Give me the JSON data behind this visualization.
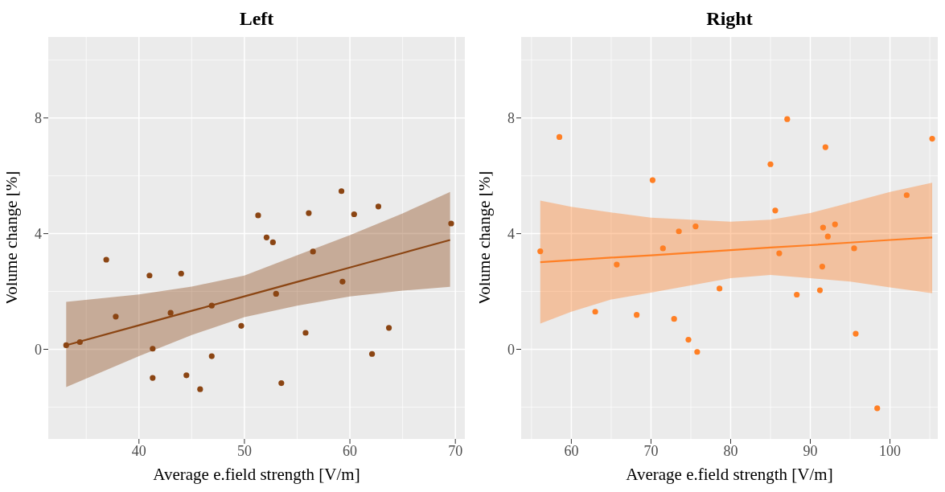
{
  "chart_data": [
    {
      "type": "scatter",
      "title": "Left",
      "xlabel": "Average e.field strength [V/m]",
      "ylabel": "Volume change [%]",
      "xlim": [
        31.4,
        70.9
      ],
      "xticks": [
        40,
        50,
        60,
        70
      ],
      "ylim": [
        -3.1,
        10.8
      ],
      "yticks": [
        0,
        4,
        8
      ],
      "grid": true,
      "series": [
        {
          "type": "scatter",
          "color": "#8b4513",
          "x": [
            33.1,
            34.4,
            36.9,
            37.8,
            41.0,
            44.0,
            41.3,
            41.3,
            43.0,
            44.5,
            45.8,
            46.9,
            46.9,
            49.7,
            51.3,
            52.1,
            52.7,
            53.0,
            53.5,
            55.8,
            56.1,
            56.5,
            59.2,
            59.3,
            60.4,
            62.1,
            62.7,
            63.7,
            69.6
          ],
          "values": [
            0.14,
            0.25,
            3.1,
            1.13,
            2.55,
            2.62,
            0.02,
            -0.99,
            1.26,
            -0.9,
            -1.38,
            -0.24,
            1.51,
            0.81,
            4.63,
            3.87,
            3.7,
            1.92,
            -1.17,
            0.57,
            4.71,
            3.38,
            5.47,
            2.34,
            4.67,
            -0.16,
            4.94,
            0.74,
            4.35
          ]
        },
        {
          "type": "line",
          "color": "#8b4513",
          "x": [
            33.1,
            40,
            45,
            50,
            55,
            60,
            65,
            69.5
          ],
          "values": [
            0.14,
            0.83,
            1.33,
            1.83,
            2.33,
            2.83,
            3.33,
            3.78
          ],
          "lower": [
            -1.31,
            -0.24,
            0.49,
            1.11,
            1.51,
            1.83,
            2.03,
            2.16
          ],
          "upper": [
            1.64,
            1.9,
            2.17,
            2.55,
            3.25,
            3.95,
            4.7,
            5.44
          ]
        }
      ]
    },
    {
      "type": "scatter",
      "title": "Right",
      "xlabel": "Average e.field strength [V/m]",
      "ylabel": "Volume change [%]",
      "xlim": [
        53.7,
        106.0
      ],
      "xticks": [
        60,
        70,
        80,
        90,
        100
      ],
      "ylim": [
        -3.1,
        10.8
      ],
      "yticks": [
        0,
        4,
        8
      ],
      "grid": true,
      "series": [
        {
          "type": "scatter",
          "color": "#ff7f24",
          "x": [
            56.1,
            58.5,
            63.0,
            65.7,
            68.2,
            70.2,
            71.5,
            72.9,
            73.5,
            74.7,
            75.6,
            75.8,
            78.6,
            85.0,
            85.6,
            86.1,
            87.1,
            88.3,
            91.2,
            91.5,
            91.6,
            91.9,
            92.2,
            93.1,
            95.5,
            95.7,
            98.4,
            102.1,
            105.3
          ],
          "values": [
            3.39,
            7.34,
            1.3,
            2.93,
            1.19,
            5.85,
            3.49,
            1.05,
            4.08,
            0.33,
            4.25,
            -0.09,
            2.1,
            6.4,
            4.8,
            3.32,
            7.96,
            1.89,
            2.04,
            2.86,
            4.21,
            6.99,
            3.9,
            4.32,
            3.49,
            0.54,
            -2.04,
            5.33,
            7.28
          ]
        },
        {
          "type": "line",
          "color": "#ff7f24",
          "x": [
            56.1,
            60,
            65,
            70,
            80,
            85,
            90,
            95,
            100,
            105.3
          ],
          "values": [
            3.01,
            3.08,
            3.17,
            3.25,
            3.43,
            3.52,
            3.6,
            3.69,
            3.78,
            3.87
          ],
          "lower": [
            0.89,
            1.3,
            1.72,
            1.96,
            2.46,
            2.57,
            2.46,
            2.34,
            2.14,
            1.94
          ],
          "upper": [
            5.14,
            4.93,
            4.73,
            4.55,
            4.41,
            4.48,
            4.71,
            5.07,
            5.44,
            5.76
          ]
        }
      ]
    }
  ]
}
